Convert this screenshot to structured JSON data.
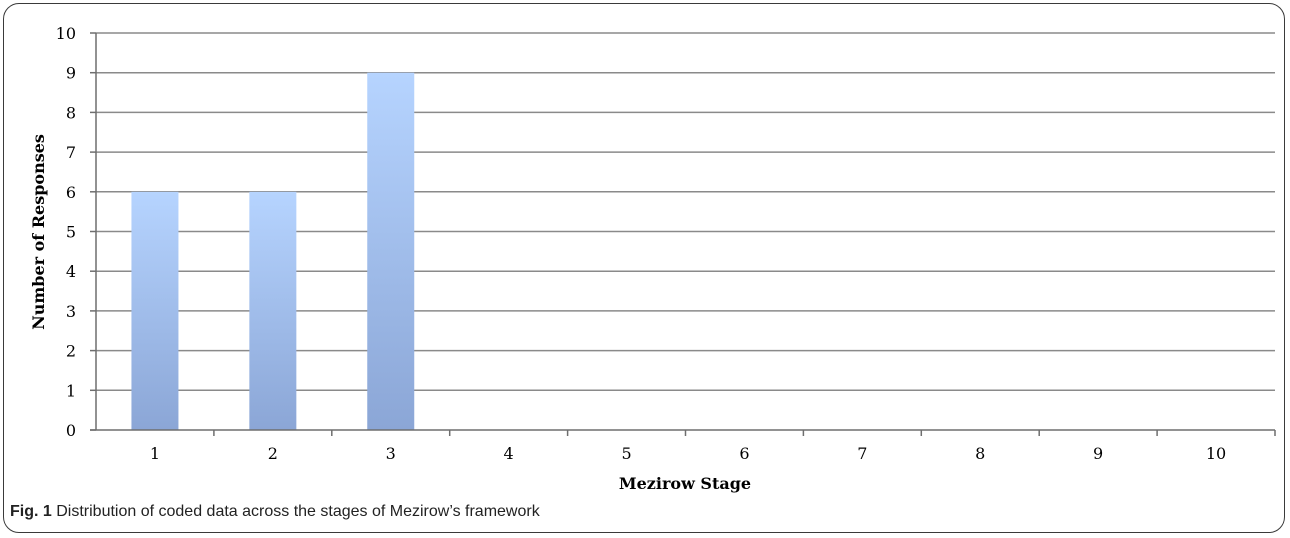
{
  "caption": {
    "label": "Fig. 1",
    "text": "Distribution of coded data across the stages of Mezirow’s framework"
  },
  "chart_data": {
    "type": "bar",
    "title": "",
    "xlabel": "Mezirow Stage",
    "ylabel": "Number of Responses",
    "categories": [
      "1",
      "2",
      "3",
      "4",
      "5",
      "6",
      "7",
      "8",
      "9",
      "10"
    ],
    "values": [
      6,
      6,
      9,
      0,
      0,
      0,
      0,
      0,
      0,
      0
    ],
    "ylim": [
      0,
      10
    ],
    "yticks": [
      "0",
      "1",
      "2",
      "3",
      "4",
      "5",
      "6",
      "7",
      "8",
      "9",
      "10"
    ],
    "grid": true,
    "legend": "none",
    "colors": {
      "bar_top": "#b6d4ff",
      "bar_bottom": "#8ba6d6",
      "grid": "#8a8a8a",
      "axis": "#6e6e6e"
    }
  }
}
